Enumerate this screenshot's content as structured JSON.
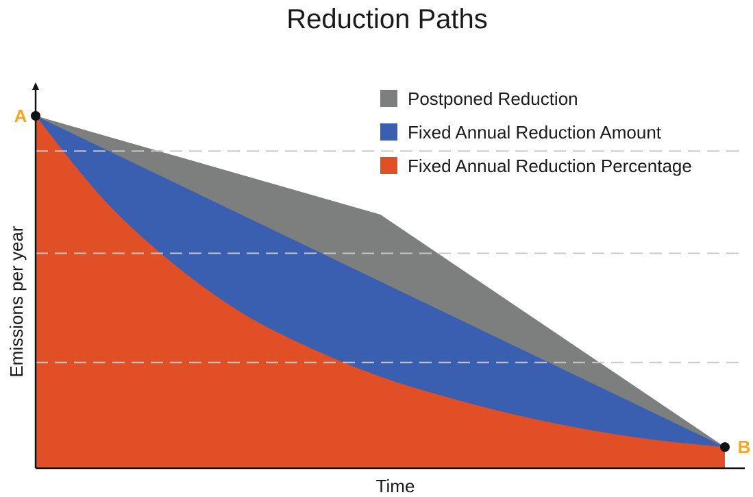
{
  "chart_data": {
    "type": "area",
    "title": "Reduction Paths",
    "xlabel": "Time",
    "ylabel": "Emissions per year",
    "xlim": [
      0,
      1
    ],
    "ylim": [
      0,
      1
    ],
    "grid": "horizontal dashed",
    "legend_position": "top-right",
    "series": [
      {
        "name": "Postponed Reduction",
        "color": "#7d7e7e",
        "x": [
          0,
          0.5,
          1
        ],
        "y": [
          1,
          0.72,
          0.06
        ]
      },
      {
        "name": "Fixed Annual Reduction Amount",
        "color": "#3b5fb0",
        "x": [
          0,
          1
        ],
        "y": [
          1,
          0.06
        ]
      },
      {
        "name": "Fixed Annual Reduction Percentage",
        "color": "#e04f26",
        "x": [
          0,
          0.1,
          0.2,
          0.3,
          0.4,
          0.5,
          0.6,
          0.7,
          0.8,
          0.9,
          1
        ],
        "y": [
          1,
          0.76,
          0.58,
          0.44,
          0.34,
          0.26,
          0.2,
          0.15,
          0.11,
          0.08,
          0.06
        ]
      }
    ],
    "points": [
      {
        "label": "A",
        "x": 0,
        "y": 1
      },
      {
        "label": "B",
        "x": 1,
        "y": 0.06
      }
    ],
    "point_label_color": "#f5a623",
    "gridlines_y": [
      0.3,
      0.61,
      0.9
    ]
  }
}
